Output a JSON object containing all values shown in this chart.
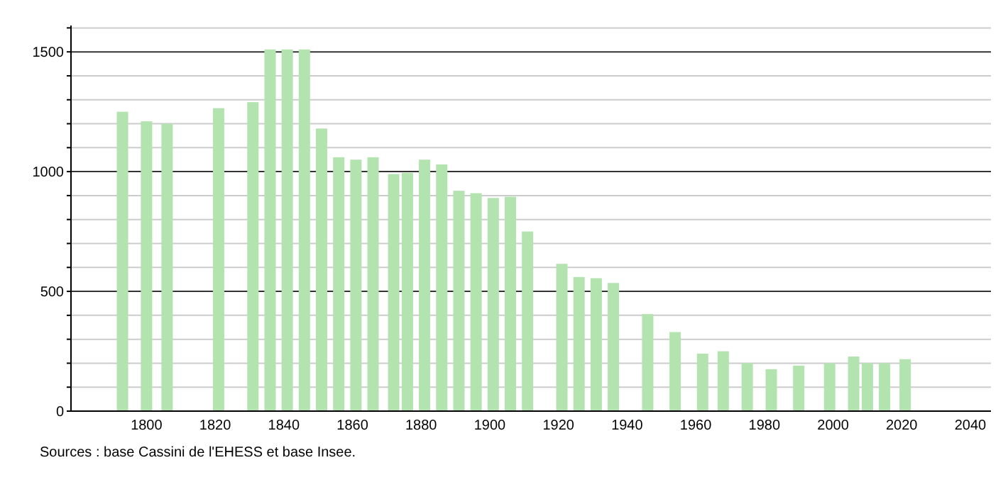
{
  "chart_data": {
    "type": "bar",
    "color": "#b3e4b0",
    "x": [
      1793,
      1800,
      1806,
      1821,
      1831,
      1836,
      1841,
      1846,
      1851,
      1856,
      1861,
      1866,
      1872,
      1876,
      1881,
      1886,
      1891,
      1896,
      1901,
      1906,
      1911,
      1921,
      1926,
      1931,
      1936,
      1946,
      1954,
      1962,
      1968,
      1975,
      1982,
      1990,
      1999,
      2006,
      2010,
      2015,
      2021
    ],
    "values": [
      1250,
      1210,
      1200,
      1265,
      1290,
      1510,
      1510,
      1510,
      1180,
      1060,
      1050,
      1060,
      990,
      995,
      1050,
      1030,
      920,
      910,
      890,
      895,
      750,
      615,
      560,
      555,
      535,
      405,
      330,
      240,
      250,
      200,
      175,
      190,
      200,
      228,
      200,
      200,
      217
    ],
    "xlim": [
      1778,
      2046
    ],
    "xticks": [
      1800,
      1820,
      1840,
      1860,
      1880,
      1900,
      1920,
      1940,
      1960,
      1980,
      2000,
      2020,
      2040
    ],
    "ylim": [
      0,
      1610
    ],
    "yticks": [
      0,
      {
        "value": 100,
        "label": null
      },
      {
        "value": 200,
        "label": null
      },
      {
        "value": 300,
        "label": null
      },
      {
        "value": 400,
        "label": null
      },
      500,
      {
        "value": 600,
        "label": null
      },
      {
        "value": 700,
        "label": null
      },
      {
        "value": 800,
        "label": null
      },
      {
        "value": 900,
        "label": null
      },
      1000,
      {
        "value": 1100,
        "label": null
      },
      {
        "value": 1200,
        "label": null
      },
      {
        "value": 1300,
        "label": null
      },
      {
        "value": 1400,
        "label": null
      },
      1500,
      {
        "value": 1600,
        "label": null
      }
    ],
    "grid": "y",
    "annotations": [
      "Sources : base Cassini de l'EHESS et base Insee."
    ]
  }
}
